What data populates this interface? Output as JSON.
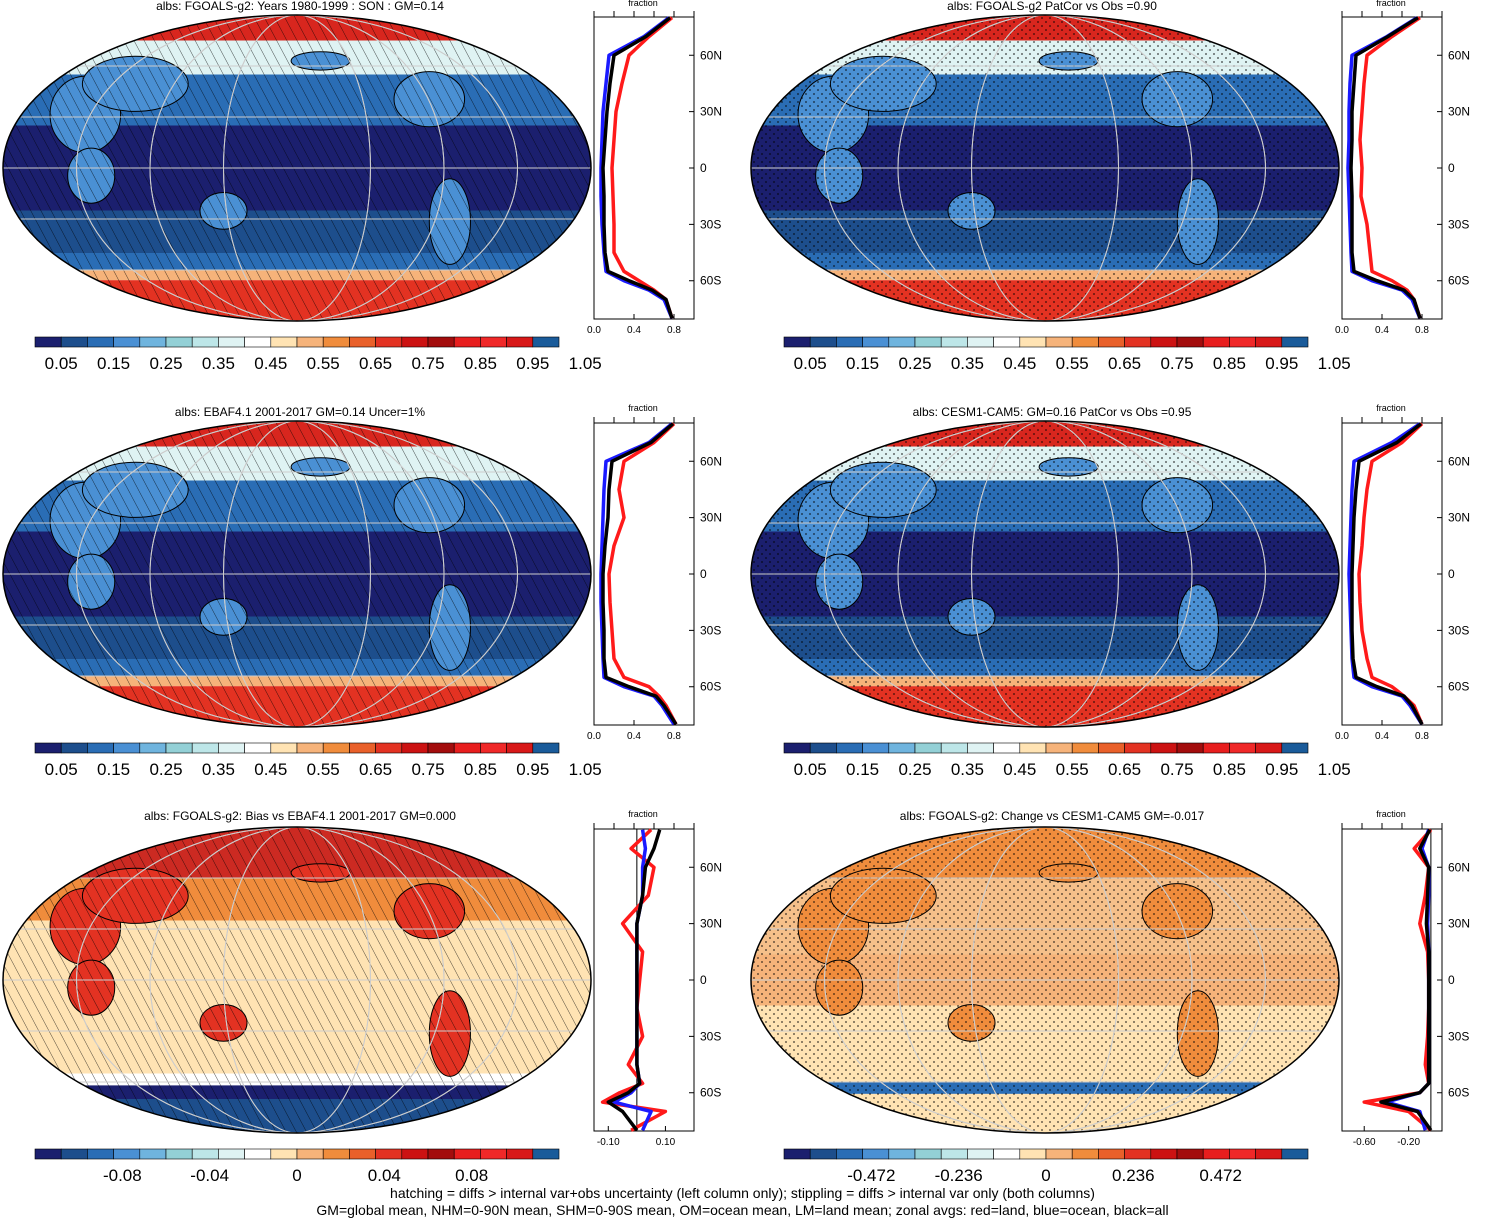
{
  "panels": [
    {
      "title": "albs: FGOALS-g2: Years 1980-1999 : SON : GM=0.14",
      "fraction_label": "fraction",
      "hatch": "hatch",
      "palette": "seq"
    },
    {
      "title": "albs: FGOALS-g2 PatCor vs Obs =0.90",
      "fraction_label": "fraction",
      "hatch": "stipple",
      "palette": "seq"
    },
    {
      "title": "albs: EBAF4.1 2001-2017 GM=0.14 Uncer=1%",
      "fraction_label": "fraction",
      "hatch": "hatch",
      "palette": "seq"
    },
    {
      "title": "albs: CESM1-CAM5: GM=0.16 PatCor vs Obs =0.95",
      "fraction_label": "fraction",
      "hatch": "stipple",
      "palette": "seq"
    },
    {
      "title": "albs: FGOALS-g2: Bias vs EBAF4.1 2001-2017  GM=0.000",
      "fraction_label": "fraction",
      "hatch": "hatch",
      "palette": "div"
    },
    {
      "title": "albs: FGOALS-g2: Change vs CESM1-CAM5 GM=-0.017",
      "fraction_label": "fraction",
      "hatch": "stipple",
      "palette": "div"
    }
  ],
  "colorbars": {
    "sequential_labels": [
      "0.05",
      "0.15",
      "0.25",
      "0.35",
      "0.45",
      "0.55",
      "0.65",
      "0.75",
      "0.85",
      "0.95",
      "1.05"
    ],
    "bias_labels": [
      "-0.08",
      "-0.04",
      "0",
      "0.04",
      "0.08"
    ],
    "change_labels": [
      "-0.472",
      "-0.236",
      "0",
      "0.236",
      "0.472"
    ]
  },
  "zonal_axes": {
    "lat_labels": [
      "60N",
      "30N",
      "0",
      "30S",
      "60S"
    ],
    "abs_ticks": [
      "0.0",
      "0.4",
      "0.8"
    ],
    "bias_ticks": [
      "-0.10",
      "0.10"
    ],
    "change_ticks": [
      "-0.60",
      "-0.20"
    ]
  },
  "colors": {
    "land": "#ff1a1a",
    "ocean": "#1a1aff",
    "all": "#000000",
    "seq_palette": [
      "#1b1f6e",
      "#1d4e8c",
      "#2a6db5",
      "#4a90d4",
      "#6fb4de",
      "#93d0d6",
      "#bde6e8",
      "#dff3f3",
      "#ffffff",
      "#ffe3b3",
      "#f6b37a",
      "#f08c3c",
      "#e9602a",
      "#e33222",
      "#cc1212",
      "#a30d0d",
      "#e81e1e",
      "#f02828",
      "#d81818",
      "#1a5b9a"
    ],
    "div_palette": [
      "#1b1f6e",
      "#1d4e8c",
      "#2a6db5",
      "#4a90d4",
      "#6fb4de",
      "#93d0d6",
      "#bde6e8",
      "#dff3f3",
      "#ffffff",
      "#ffe3b3",
      "#f6b37a",
      "#f08c3c",
      "#e9602a",
      "#e33222",
      "#cc1212",
      "#a30d0d",
      "#e81e1e",
      "#f02828",
      "#d81818",
      "#1a5b9a"
    ]
  },
  "chart_data": [
    {
      "type": "heatmap",
      "title": "albs: FGOALS-g2: Years 1980-1999 : SON : GM=0.14",
      "zonal": {
        "lat": [
          80,
          70,
          60,
          45,
          30,
          15,
          0,
          -15,
          -30,
          -45,
          -55,
          -60,
          -65,
          -70,
          -80
        ],
        "land": [
          0.78,
          0.55,
          0.35,
          0.28,
          0.22,
          0.2,
          0.18,
          0.19,
          0.2,
          0.2,
          0.3,
          0.45,
          0.6,
          0.72,
          0.78
        ],
        "ocean": [
          0.75,
          0.5,
          0.15,
          0.12,
          0.09,
          0.08,
          0.07,
          0.07,
          0.08,
          0.1,
          0.12,
          0.3,
          0.55,
          0.7,
          0.78
        ],
        "all": [
          0.76,
          0.52,
          0.2,
          0.16,
          0.13,
          0.11,
          0.09,
          0.1,
          0.1,
          0.11,
          0.14,
          0.35,
          0.58,
          0.72,
          0.78
        ]
      }
    },
    {
      "type": "heatmap",
      "title": "albs: FGOALS-g2 PatCor vs Obs =0.90",
      "zonal": {
        "lat": [
          80,
          70,
          60,
          45,
          30,
          15,
          0,
          -15,
          -30,
          -45,
          -55,
          -60,
          -65,
          -70,
          -80
        ],
        "land": [
          0.78,
          0.5,
          0.25,
          0.22,
          0.2,
          0.18,
          0.2,
          0.19,
          0.25,
          0.28,
          0.3,
          0.5,
          0.65,
          0.72,
          0.78
        ],
        "ocean": [
          0.75,
          0.45,
          0.1,
          0.08,
          0.07,
          0.07,
          0.06,
          0.07,
          0.08,
          0.09,
          0.1,
          0.3,
          0.6,
          0.7,
          0.78
        ],
        "all": [
          0.76,
          0.46,
          0.14,
          0.12,
          0.1,
          0.1,
          0.09,
          0.1,
          0.1,
          0.1,
          0.12,
          0.35,
          0.62,
          0.72,
          0.78
        ]
      }
    },
    {
      "type": "heatmap",
      "title": "albs: EBAF4.1 2001-2017 GM=0.14 Uncer=1%",
      "zonal": {
        "lat": [
          80,
          70,
          60,
          45,
          30,
          15,
          0,
          -15,
          -30,
          -45,
          -55,
          -60,
          -65,
          -70,
          -80
        ],
        "land": [
          0.8,
          0.6,
          0.3,
          0.25,
          0.3,
          0.2,
          0.15,
          0.16,
          0.18,
          0.2,
          0.3,
          0.55,
          0.65,
          0.72,
          0.82
        ],
        "ocean": [
          0.78,
          0.55,
          0.12,
          0.1,
          0.09,
          0.08,
          0.07,
          0.07,
          0.08,
          0.09,
          0.1,
          0.3,
          0.6,
          0.68,
          0.8
        ],
        "all": [
          0.79,
          0.57,
          0.18,
          0.15,
          0.14,
          0.11,
          0.09,
          0.09,
          0.1,
          0.1,
          0.12,
          0.35,
          0.62,
          0.7,
          0.82
        ]
      }
    },
    {
      "type": "heatmap",
      "title": "albs: CESM1-CAM5: GM=0.16 PatCor vs Obs =0.95",
      "zonal": {
        "lat": [
          80,
          70,
          60,
          45,
          30,
          15,
          0,
          -15,
          -30,
          -45,
          -55,
          -60,
          -65,
          -70,
          -80
        ],
        "land": [
          0.8,
          0.6,
          0.3,
          0.25,
          0.22,
          0.2,
          0.17,
          0.18,
          0.2,
          0.25,
          0.3,
          0.5,
          0.62,
          0.72,
          0.8
        ],
        "ocean": [
          0.78,
          0.5,
          0.12,
          0.1,
          0.09,
          0.08,
          0.07,
          0.08,
          0.09,
          0.1,
          0.12,
          0.3,
          0.6,
          0.68,
          0.8
        ],
        "all": [
          0.79,
          0.55,
          0.17,
          0.14,
          0.12,
          0.11,
          0.1,
          0.1,
          0.1,
          0.11,
          0.14,
          0.35,
          0.62,
          0.7,
          0.8
        ]
      }
    },
    {
      "type": "heatmap",
      "title": "albs: FGOALS-g2: Bias vs EBAF4.1 2001-2017  GM=0.000",
      "zonal": {
        "lat": [
          80,
          70,
          60,
          45,
          30,
          15,
          0,
          -15,
          -30,
          -45,
          -55,
          -60,
          -65,
          -70,
          -80
        ],
        "land": [
          0.05,
          -0.02,
          0.06,
          0.04,
          -0.05,
          0.02,
          0.01,
          0.0,
          0.02,
          -0.03,
          0.02,
          -0.06,
          -0.12,
          0.1,
          -0.02
        ],
        "ocean": [
          0.02,
          0.03,
          0.02,
          0.02,
          0.0,
          0.0,
          0.0,
          0.0,
          0.0,
          0.0,
          0.01,
          -0.02,
          -0.08,
          0.05,
          0.02
        ],
        "all": [
          0.08,
          0.06,
          0.03,
          0.02,
          0.0,
          0.0,
          0.0,
          0.0,
          0.0,
          0.0,
          0.01,
          -0.03,
          -0.1,
          -0.05,
          0.0
        ]
      }
    },
    {
      "type": "heatmap",
      "title": "albs: FGOALS-g2: Change vs CESM1-CAM5 GM=-0.017",
      "zonal": {
        "lat": [
          80,
          70,
          60,
          45,
          30,
          15,
          0,
          -15,
          -30,
          -45,
          -55,
          -60,
          -65,
          -70,
          -80
        ],
        "land": [
          0.0,
          -0.15,
          -0.02,
          -0.05,
          -0.1,
          -0.03,
          -0.02,
          -0.02,
          -0.03,
          -0.05,
          -0.02,
          -0.1,
          -0.6,
          -0.2,
          0.0
        ],
        "ocean": [
          -0.02,
          -0.08,
          -0.02,
          -0.02,
          -0.03,
          -0.02,
          -0.02,
          -0.02,
          -0.02,
          -0.02,
          -0.02,
          -0.1,
          -0.4,
          -0.1,
          -0.05
        ],
        "all": [
          -0.01,
          -0.1,
          -0.02,
          -0.03,
          -0.04,
          -0.02,
          -0.02,
          -0.02,
          -0.02,
          -0.02,
          -0.02,
          -0.1,
          -0.45,
          -0.12,
          0.0
        ]
      }
    }
  ],
  "footer": {
    "line1": "hatching = diffs > internal var+obs uncertainty (left column only); stippling = diffs > internal var only (both columns)",
    "line2": "GM=global mean, NHM=0-90N mean, SHM=0-90S mean, OM=ocean mean, LM=land mean; zonal avgs: red=land, blue=ocean, black=all"
  }
}
